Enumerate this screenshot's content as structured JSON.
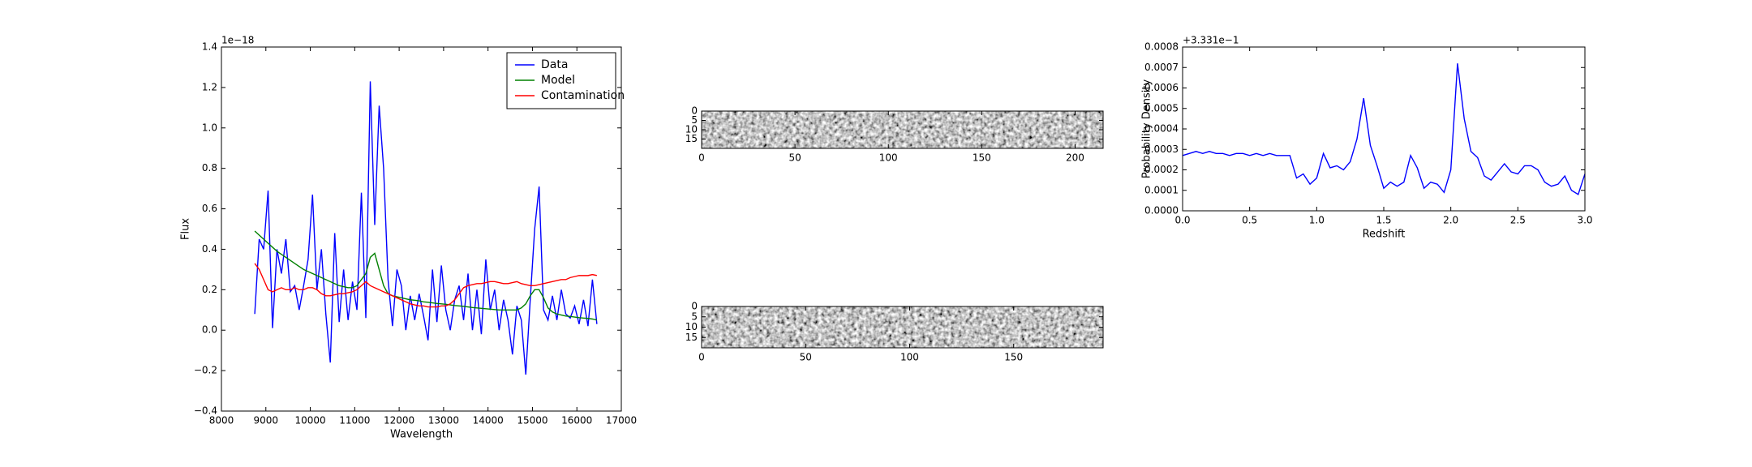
{
  "chart_data": [
    {
      "type": "line",
      "xlabel": "Wavelength",
      "ylabel": "Flux",
      "y_offset_label": "1e−18",
      "xlim": [
        8000,
        17000
      ],
      "ylim": [
        -0.4,
        1.4
      ],
      "xticks": [
        8000,
        9000,
        10000,
        11000,
        12000,
        13000,
        14000,
        15000,
        16000,
        17000
      ],
      "yticks": [
        {
          "value": -0.4,
          "label": "−0.4"
        },
        {
          "value": -0.2,
          "label": "−0.2"
        },
        {
          "value": 0,
          "label": "0.0"
        },
        {
          "value": 0.2,
          "label": "0.2"
        },
        {
          "value": 0.4,
          "label": "0.4"
        },
        {
          "value": 0.6,
          "label": "0.6"
        },
        {
          "value": 0.8,
          "label": "0.8"
        },
        {
          "value": 1.0,
          "label": "1.0"
        },
        {
          "value": 1.2,
          "label": "1.2"
        },
        {
          "value": 1.4,
          "label": "1.4"
        }
      ],
      "legend": "upper right",
      "x": [
        8750,
        8850,
        8950,
        9050,
        9150,
        9250,
        9350,
        9450,
        9550,
        9650,
        9750,
        9850,
        9950,
        10050,
        10150,
        10250,
        10350,
        10450,
        10550,
        10650,
        10750,
        10850,
        10950,
        11050,
        11150,
        11250,
        11350,
        11450,
        11550,
        11650,
        11750,
        11850,
        11950,
        12050,
        12150,
        12250,
        12350,
        12450,
        12550,
        12650,
        12750,
        12850,
        12950,
        13050,
        13150,
        13250,
        13350,
        13450,
        13550,
        13650,
        13750,
        13850,
        13950,
        14050,
        14150,
        14250,
        14350,
        14450,
        14550,
        14650,
        14750,
        14850,
        14950,
        15050,
        15150,
        15250,
        15350,
        15450,
        15550,
        15650,
        15750,
        15850,
        15950,
        16050,
        16150,
        16250,
        16350,
        16450
      ],
      "series": [
        {
          "name": "Data",
          "color": "#0000ff",
          "values": [
            0.08,
            0.45,
            0.4,
            0.69,
            0.01,
            0.4,
            0.28,
            0.45,
            0.19,
            0.22,
            0.1,
            0.22,
            0.35,
            0.67,
            0.2,
            0.4,
            0.08,
            -0.16,
            0.48,
            0.04,
            0.3,
            0.05,
            0.24,
            0.1,
            0.68,
            0.06,
            1.23,
            0.52,
            1.11,
            0.8,
            0.25,
            0.02,
            0.3,
            0.22,
            0.0,
            0.17,
            0.05,
            0.18,
            0.07,
            -0.05,
            0.3,
            0.04,
            0.32,
            0.1,
            0.0,
            0.15,
            0.22,
            0.05,
            0.28,
            0.0,
            0.2,
            -0.02,
            0.35,
            0.1,
            0.2,
            0.0,
            0.15,
            0.05,
            -0.12,
            0.12,
            0.05,
            -0.22,
            0.15,
            0.5,
            0.71,
            0.1,
            0.05,
            0.17,
            0.05,
            0.2,
            0.08,
            0.06,
            0.12,
            0.03,
            0.15,
            0.02,
            0.25,
            0.03
          ]
        },
        {
          "name": "Model",
          "color": "#008000",
          "values": [
            0.49,
            0.47,
            0.45,
            0.43,
            0.41,
            0.39,
            0.375,
            0.36,
            0.345,
            0.33,
            0.315,
            0.3,
            0.29,
            0.28,
            0.27,
            0.26,
            0.25,
            0.24,
            0.23,
            0.22,
            0.215,
            0.21,
            0.21,
            0.22,
            0.25,
            0.28,
            0.36,
            0.38,
            0.3,
            0.22,
            0.18,
            0.17,
            0.165,
            0.16,
            0.155,
            0.15,
            0.148,
            0.145,
            0.14,
            0.138,
            0.135,
            0.132,
            0.13,
            0.128,
            0.125,
            0.122,
            0.12,
            0.118,
            0.115,
            0.112,
            0.11,
            0.108,
            0.106,
            0.104,
            0.102,
            0.1,
            0.1,
            0.1,
            0.1,
            0.1,
            0.11,
            0.13,
            0.17,
            0.2,
            0.2,
            0.16,
            0.11,
            0.09,
            0.08,
            0.075,
            0.07,
            0.068,
            0.065,
            0.062,
            0.06,
            0.058,
            0.055,
            0.05
          ]
        },
        {
          "name": "Contamination",
          "color": "#ff0000",
          "values": [
            0.33,
            0.3,
            0.25,
            0.2,
            0.19,
            0.2,
            0.21,
            0.2,
            0.2,
            0.21,
            0.2,
            0.2,
            0.21,
            0.21,
            0.2,
            0.18,
            0.17,
            0.17,
            0.175,
            0.18,
            0.18,
            0.185,
            0.19,
            0.2,
            0.22,
            0.24,
            0.22,
            0.21,
            0.2,
            0.19,
            0.18,
            0.17,
            0.16,
            0.15,
            0.14,
            0.13,
            0.125,
            0.12,
            0.12,
            0.115,
            0.115,
            0.115,
            0.12,
            0.12,
            0.13,
            0.15,
            0.18,
            0.21,
            0.22,
            0.225,
            0.23,
            0.23,
            0.235,
            0.24,
            0.24,
            0.235,
            0.23,
            0.23,
            0.235,
            0.24,
            0.23,
            0.225,
            0.22,
            0.22,
            0.225,
            0.23,
            0.235,
            0.24,
            0.245,
            0.25,
            0.25,
            0.26,
            0.265,
            0.27,
            0.27,
            0.27,
            0.275,
            0.27
          ]
        }
      ]
    },
    {
      "type": "image",
      "xlim": [
        0,
        215
      ],
      "ylim": [
        20,
        0
      ],
      "xticks": [
        0,
        50,
        100,
        150,
        200
      ],
      "yticks": [
        0,
        5,
        10,
        15
      ]
    },
    {
      "type": "image",
      "xlim": [
        0,
        193
      ],
      "ylim": [
        20,
        0
      ],
      "xticks": [
        0,
        50,
        100,
        150
      ],
      "yticks": [
        0,
        5,
        10,
        15
      ]
    },
    {
      "type": "line",
      "xlabel": "Redshift",
      "ylabel": "Probability Density",
      "y_offset_label": "+3.331e−1",
      "xlim": [
        0,
        3
      ],
      "ylim": [
        0,
        0.0008
      ],
      "xticks": [
        {
          "value": 0,
          "label": "0.0"
        },
        0.5,
        {
          "value": 1,
          "label": "1.0"
        },
        1.5,
        {
          "value": 2,
          "label": "2.0"
        },
        2.5,
        {
          "value": 3,
          "label": "3.0"
        }
      ],
      "yticks": [
        {
          "value": 0,
          "label": "0.0000"
        },
        {
          "value": 0.0001,
          "label": "0.0001"
        },
        {
          "value": 0.0002,
          "label": "0.0002"
        },
        {
          "value": 0.0003,
          "label": "0.0003"
        },
        {
          "value": 0.0004,
          "label": "0.0004"
        },
        {
          "value": 0.0005,
          "label": "0.0005"
        },
        {
          "value": 0.0006,
          "label": "0.0006"
        },
        {
          "value": 0.0007,
          "label": "0.0007"
        },
        {
          "value": 0.0008,
          "label": "0.0008"
        }
      ],
      "x": [
        0,
        0.05,
        0.1,
        0.15,
        0.2,
        0.25,
        0.3,
        0.35,
        0.4,
        0.45,
        0.5,
        0.55,
        0.6,
        0.65,
        0.7,
        0.75,
        0.8,
        0.85,
        0.9,
        0.95,
        1.0,
        1.05,
        1.1,
        1.15,
        1.2,
        1.25,
        1.3,
        1.35,
        1.4,
        1.45,
        1.5,
        1.55,
        1.6,
        1.65,
        1.7,
        1.75,
        1.8,
        1.85,
        1.9,
        1.95,
        2.0,
        2.05,
        2.1,
        2.15,
        2.2,
        2.25,
        2.3,
        2.35,
        2.4,
        2.45,
        2.5,
        2.55,
        2.6,
        2.65,
        2.7,
        2.75,
        2.8,
        2.85,
        2.9,
        2.95,
        3.0
      ],
      "series": [
        {
          "color": "#0000ff",
          "values": [
            0.00027,
            0.00028,
            0.00029,
            0.00028,
            0.00029,
            0.00028,
            0.00028,
            0.00027,
            0.00028,
            0.00028,
            0.00027,
            0.00028,
            0.00027,
            0.00028,
            0.00027,
            0.00027,
            0.00027,
            0.00016,
            0.00018,
            0.00013,
            0.00016,
            0.00028,
            0.00021,
            0.00022,
            0.0002,
            0.00024,
            0.00035,
            0.00055,
            0.00032,
            0.00022,
            0.00011,
            0.00014,
            0.00012,
            0.00014,
            0.00027,
            0.00021,
            0.00011,
            0.00014,
            0.00013,
            9e-05,
            0.0002,
            0.00072,
            0.00045,
            0.00029,
            0.00026,
            0.00017,
            0.00015,
            0.00019,
            0.00023,
            0.00019,
            0.00018,
            0.00022,
            0.00022,
            0.0002,
            0.00014,
            0.00012,
            0.00013,
            0.00017,
            0.0001,
            8e-05,
            0.00018
          ]
        }
      ]
    }
  ]
}
